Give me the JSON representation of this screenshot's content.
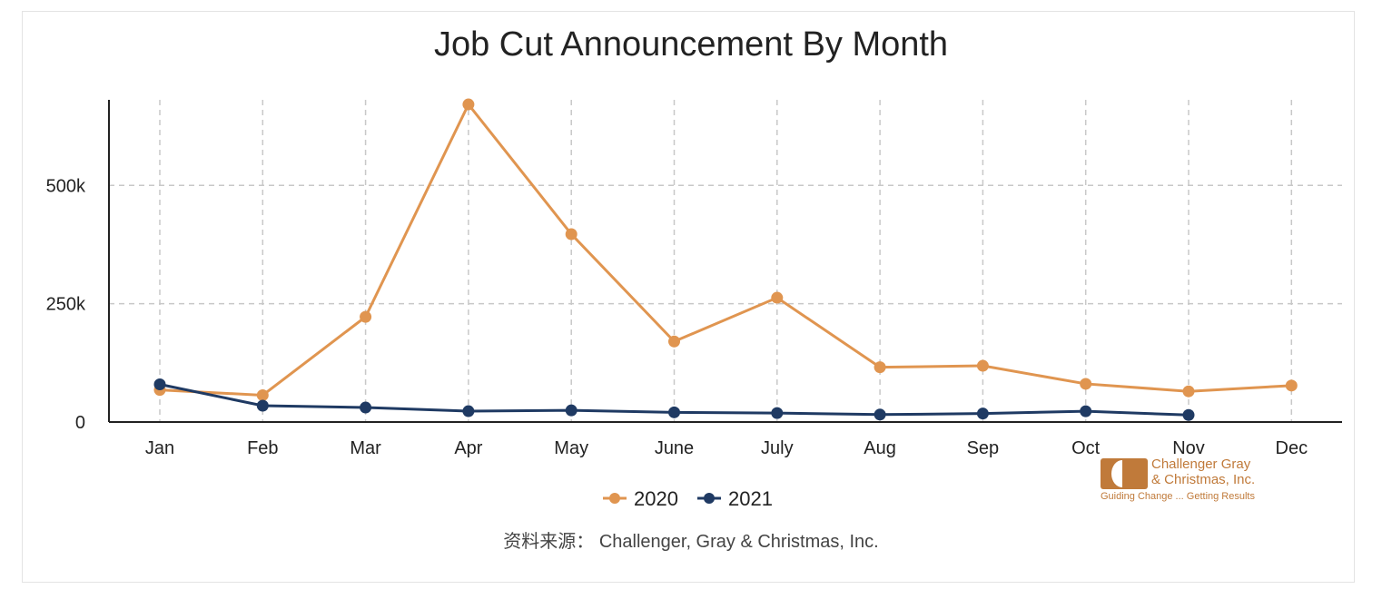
{
  "chart_data": {
    "type": "line",
    "title": "Job Cut Announcement By Month",
    "categories": [
      "Jan",
      "Feb",
      "Mar",
      "Apr",
      "May",
      "June",
      "July",
      "Aug",
      "Sep",
      "Oct",
      "Nov",
      "Dec"
    ],
    "y_ticks": [
      {
        "value": 0,
        "label": "0"
      },
      {
        "value": 250000,
        "label": "250k"
      },
      {
        "value": 500000,
        "label": "500k"
      }
    ],
    "ylim": [
      0,
      700000
    ],
    "grid": true,
    "legend_position": "bottom",
    "series": [
      {
        "name": "2020",
        "color": "#e09550",
        "values": [
          67735,
          56660,
          222288,
          671129,
          397016,
          170219,
          262649,
          115762,
          118804,
          80666,
          64797,
          77030
        ]
      },
      {
        "name": "2021",
        "color": "#1f3a63",
        "values": [
          79552,
          34531,
          30603,
          22913,
          24586,
          20476,
          18942,
          15723,
          17895,
          22822,
          14875,
          null
        ]
      }
    ]
  },
  "logo": {
    "name_line1": "Challenger Gray",
    "name_line2": "& Christmas, Inc.",
    "tagline": "Guiding Change ... Getting Results",
    "color": "#c07a3a"
  },
  "source_text": "资料来源： Challenger, Gray & Christmas, Inc."
}
